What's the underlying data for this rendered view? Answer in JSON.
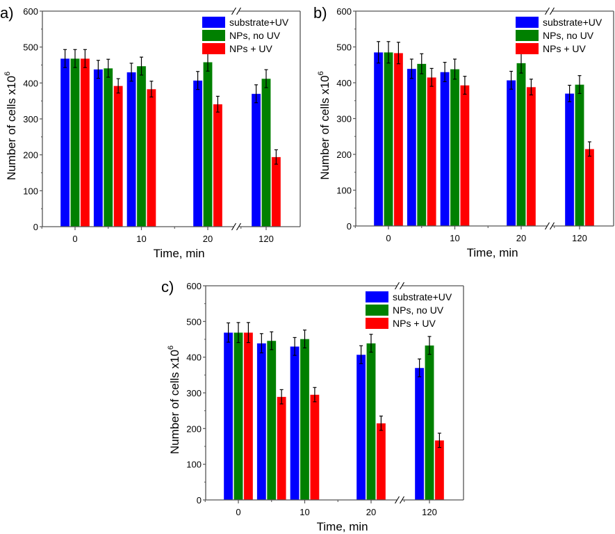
{
  "figure": {
    "series_names": [
      "substrate+UV",
      "NPs, no UV",
      "NPs + UV"
    ],
    "series_colors": [
      "#0000ff",
      "#008000",
      "#ff0000"
    ],
    "error_bar_color": "#000000",
    "axis_color": "#555555"
  },
  "chart_data": [
    {
      "panel": "a)",
      "type": "bar",
      "xlabel": "Time, min",
      "ylabel": "Number of cells x10",
      "ylabel_superscript": "6",
      "ylim": [
        0,
        600
      ],
      "yticks": [
        0,
        100,
        200,
        300,
        400,
        500,
        600
      ],
      "x": [
        0,
        5,
        10,
        20,
        120
      ],
      "xticks": [
        0,
        10,
        20,
        120
      ],
      "axis_break": "between 20 and 120",
      "legend": "top-right",
      "grid": false,
      "series": [
        {
          "name": "substrate+UV",
          "values": [
            468,
            438,
            430,
            407,
            370
          ],
          "errors": [
            25,
            25,
            25,
            25,
            25
          ]
        },
        {
          "name": "NPs, no UV",
          "values": [
            468,
            441,
            447,
            458,
            412
          ],
          "errors": [
            25,
            25,
            25,
            25,
            25
          ]
        },
        {
          "name": "NPs + UV",
          "values": [
            468,
            392,
            383,
            341,
            194
          ],
          "errors": [
            25,
            20,
            22,
            22,
            20
          ]
        }
      ]
    },
    {
      "panel": "b)",
      "type": "bar",
      "xlabel": "Time, min",
      "ylabel": "Number of cells x10",
      "ylabel_superscript": "6",
      "ylim": [
        0,
        600
      ],
      "yticks": [
        0,
        100,
        200,
        300,
        400,
        500,
        600
      ],
      "x": [
        0,
        5,
        10,
        20,
        120
      ],
      "xticks": [
        0,
        10,
        20,
        120
      ],
      "axis_break": "between 20 and 120",
      "legend": "top-right",
      "grid": false,
      "series": [
        {
          "name": "substrate+UV",
          "values": [
            485,
            439,
            430,
            407,
            370
          ],
          "errors": [
            30,
            27,
            27,
            25,
            23
          ]
        },
        {
          "name": "NPs, no UV",
          "values": [
            485,
            453,
            438,
            455,
            395
          ],
          "errors": [
            30,
            28,
            28,
            28,
            25
          ]
        },
        {
          "name": "NPs + UV",
          "values": [
            483,
            415,
            393,
            388,
            215
          ],
          "errors": [
            30,
            25,
            25,
            22,
            20
          ]
        }
      ]
    },
    {
      "panel": "c)",
      "type": "bar",
      "xlabel": "Time, min",
      "ylabel": "Number of cells x10",
      "ylabel_superscript": "6",
      "ylim": [
        0,
        600
      ],
      "yticks": [
        0,
        100,
        200,
        300,
        400,
        500,
        600
      ],
      "x": [
        0,
        5,
        10,
        20,
        120
      ],
      "xticks": [
        0,
        10,
        20,
        120
      ],
      "axis_break": "between 20 and 120",
      "legend": "top-right",
      "grid": false,
      "series": [
        {
          "name": "substrate+UV",
          "values": [
            469,
            439,
            430,
            407,
            370
          ],
          "errors": [
            27,
            27,
            25,
            25,
            25
          ]
        },
        {
          "name": "NPs, no UV",
          "values": [
            469,
            446,
            451,
            439,
            433
          ],
          "errors": [
            28,
            25,
            25,
            25,
            25
          ]
        },
        {
          "name": "NPs + UV",
          "values": [
            469,
            289,
            295,
            215,
            167
          ],
          "errors": [
            28,
            20,
            20,
            20,
            20
          ]
        }
      ]
    }
  ]
}
